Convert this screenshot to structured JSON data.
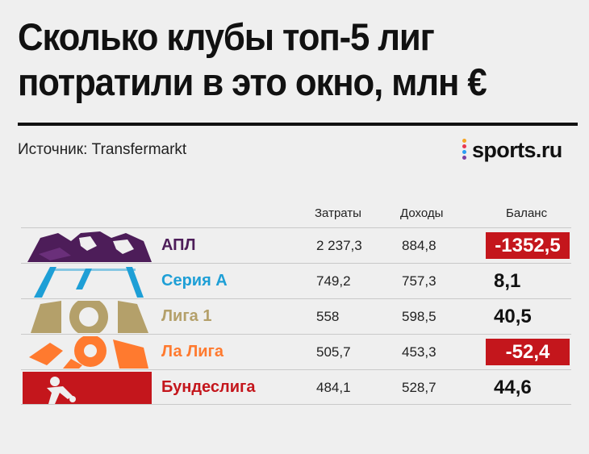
{
  "title_line1": "Сколько клубы топ-5 лиг",
  "title_line2": "потратили в это окно, млн €",
  "source": "Источник: Transfermarkt",
  "logo_text": "sports.ru",
  "colors": {
    "negative_bg": "#c4161c",
    "logo_dots": [
      "#f5a623",
      "#e8384f",
      "#2a9df4",
      "#7b3fa0"
    ]
  },
  "chart_data": {
    "type": "table",
    "title": "Сколько клубы топ-5 лиг потратили в это окно, млн €",
    "columns": [
      "Затраты",
      "Доходы",
      "Баланс"
    ],
    "rows": [
      {
        "league": "АПЛ",
        "color": "#4d1d59",
        "emblem": "premier-league-lion",
        "spend": "2 237,3",
        "income": "884,8",
        "balance": "-1352,5",
        "negative": true
      },
      {
        "league": "Серия А",
        "color": "#1e9fd6",
        "emblem": "serie-a-logo",
        "spend": "749,2",
        "income": "757,3",
        "balance": "8,1",
        "negative": false
      },
      {
        "league": "Лига 1",
        "color": "#b4a06a",
        "emblem": "ligue-1-logo",
        "spend": "558",
        "income": "598,5",
        "balance": "40,5",
        "negative": false
      },
      {
        "league": "Ла Лига",
        "color": "#ff7a2f",
        "emblem": "la-liga-ball",
        "spend": "505,7",
        "income": "453,3",
        "balance": "-52,4",
        "negative": true
      },
      {
        "league": "Бундеслига",
        "color": "#c4161c",
        "emblem": "bundesliga-player",
        "spend": "484,1",
        "income": "528,7",
        "balance": "44,6",
        "negative": false
      }
    ]
  }
}
